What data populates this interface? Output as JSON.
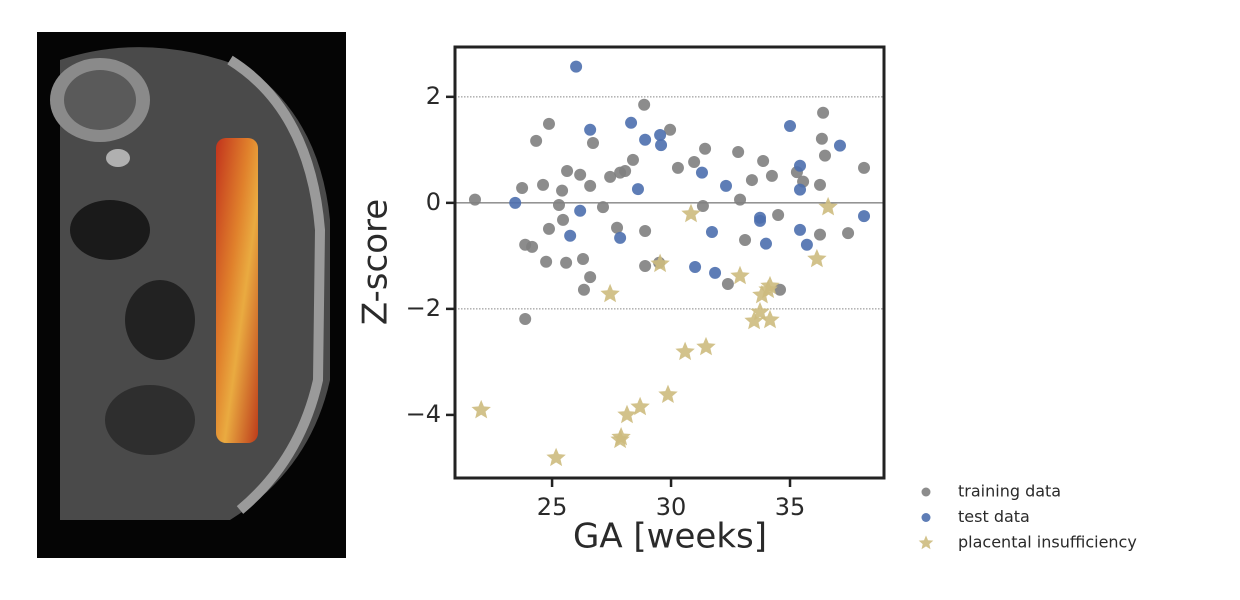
{
  "chart_data": {
    "type": "scatter",
    "x_label": "GA [weeks]",
    "y_label": "Z-score",
    "xlim": [
      20.92,
      38.95
    ],
    "ylim": [
      -5.19,
      2.94
    ],
    "xticks": [
      25,
      30,
      35
    ],
    "yticks": [
      {
        "value": -4,
        "label": "−4"
      },
      {
        "value": -2,
        "label": "−2"
      },
      0,
      2
    ],
    "hlines": [
      {
        "y": 2,
        "dashed": true
      },
      {
        "y": 0,
        "dashed": false
      },
      {
        "y": -2,
        "dashed": true
      }
    ],
    "legend": "outside-lower-right",
    "series": [
      {
        "name": "training data",
        "color": "#808080",
        "marker": "circle",
        "x": [
          21.76,
          23.74,
          23.87,
          24.16,
          23.87,
          24.33,
          24.62,
          24.75,
          24.87,
          24.87,
          25.29,
          25.42,
          25.46,
          25.63,
          25.59,
          26.18,
          26.3,
          26.34,
          26.6,
          26.6,
          26.72,
          27.14,
          27.44,
          27.73,
          27.86,
          28.07,
          28.4,
          28.87,
          28.91,
          28.91,
          29.5,
          29.96,
          30.29,
          30.97,
          31.34,
          31.43,
          32.39,
          32.82,
          32.9,
          33.11,
          33.4,
          33.87,
          34.24,
          34.5,
          34.58,
          35.29,
          35.55,
          36.26,
          36.34,
          36.39,
          36.47,
          36.26,
          37.44,
          38.11
        ],
        "values": [
          0.06,
          0.28,
          -0.79,
          -0.83,
          -2.19,
          1.17,
          0.34,
          -1.11,
          1.49,
          -0.49,
          -0.04,
          0.23,
          -0.32,
          0.6,
          -1.13,
          0.53,
          -1.06,
          -1.64,
          0.32,
          -1.4,
          1.13,
          -0.08,
          0.49,
          -0.47,
          0.57,
          0.6,
          0.81,
          1.85,
          -0.53,
          -1.19,
          -1.13,
          1.38,
          0.66,
          0.77,
          -0.06,
          1.02,
          -1.53,
          0.96,
          0.06,
          -0.7,
          0.43,
          0.79,
          0.51,
          -0.23,
          -1.64,
          0.58,
          0.4,
          0.34,
          1.21,
          1.7,
          0.89,
          -0.6,
          -0.57,
          0.66
        ]
      },
      {
        "name": "test data",
        "color": "#4c6fae",
        "marker": "circle",
        "x": [
          23.45,
          26.01,
          25.76,
          26.18,
          26.6,
          27.86,
          28.32,
          28.61,
          28.91,
          29.54,
          29.58,
          31.01,
          31.3,
          31.72,
          31.85,
          32.31,
          33.74,
          33.74,
          33.99,
          35.0,
          35.42,
          35.42,
          35.42,
          35.71,
          37.1,
          38.11
        ],
        "values": [
          0,
          2.57,
          -0.62,
          -0.15,
          1.38,
          -0.66,
          1.51,
          0.26,
          1.19,
          1.28,
          1.09,
          -1.21,
          0.57,
          -0.55,
          -1.32,
          0.32,
          -0.28,
          -0.34,
          -0.77,
          1.45,
          0.7,
          0.25,
          -0.51,
          -0.79,
          1.08,
          -0.25
        ]
      },
      {
        "name": "placental insufficiency",
        "color": "#cdbb7e",
        "marker": "star",
        "x": [
          22.02,
          25.17,
          27.86,
          27.9,
          28.15,
          28.7,
          29.87,
          30.59,
          31.47,
          30.84,
          29.54,
          27.44,
          32.9,
          33.49,
          33.74,
          33.82,
          34.08,
          34.16,
          34.16,
          36.13,
          36.6
        ],
        "values": [
          -3.91,
          -4.81,
          -4.47,
          -4.42,
          -4.0,
          -3.85,
          -3.62,
          -2.81,
          -2.72,
          -0.21,
          -1.15,
          -1.72,
          -1.38,
          -2.23,
          -2.06,
          -1.74,
          -1.64,
          -2.21,
          -1.57,
          -1.06,
          -0.08
        ]
      }
    ]
  }
}
